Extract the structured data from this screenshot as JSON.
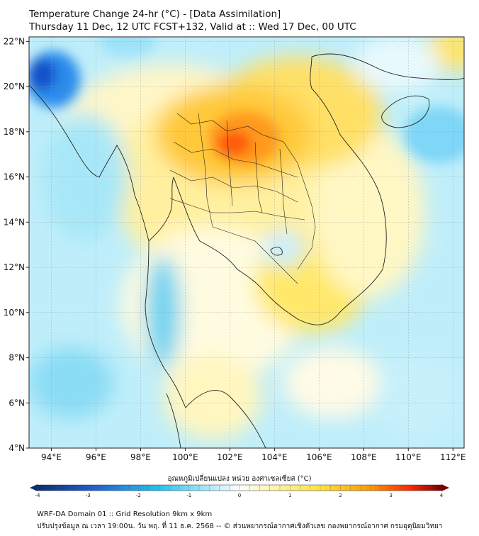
{
  "header": {
    "title_line1": "Temperature Change 24-hr (°C) - [Data Assimilation]",
    "title_line2": "Thursday 11 Dec, 12 UTC FCST+132, Valid at :: Wed 17 Dec, 00 UTC"
  },
  "map": {
    "lon_range": [
      93,
      112.5
    ],
    "lat_range": [
      4,
      22.2
    ],
    "lat_ticks": [
      {
        "value": 22,
        "label": "22°N"
      },
      {
        "value": 20,
        "label": "20°N"
      },
      {
        "value": 18,
        "label": "18°N"
      },
      {
        "value": 16,
        "label": "16°N"
      },
      {
        "value": 14,
        "label": "14°N"
      },
      {
        "value": 12,
        "label": "12°N"
      },
      {
        "value": 10,
        "label": "10°N"
      },
      {
        "value": 8,
        "label": "8°N"
      },
      {
        "value": 6,
        "label": "6°N"
      },
      {
        "value": 4,
        "label": "4°N"
      }
    ],
    "lon_ticks": [
      {
        "value": 94,
        "label": "94°E"
      },
      {
        "value": 96,
        "label": "96°E"
      },
      {
        "value": 98,
        "label": "98°E"
      },
      {
        "value": 100,
        "label": "100°E"
      },
      {
        "value": 102,
        "label": "102°E"
      },
      {
        "value": 104,
        "label": "104°E"
      },
      {
        "value": 106,
        "label": "106°E"
      },
      {
        "value": 108,
        "label": "108°E"
      },
      {
        "value": 110,
        "label": "110°E"
      },
      {
        "value": 112,
        "label": "112°E"
      }
    ]
  },
  "colorbar": {
    "title": "อุณหภูมิเปลี่ยนแปลง หน่วย องศาเซลเซียส (°C)",
    "min": -4,
    "max": 4,
    "ticks": [
      "-4",
      "-3",
      "-2",
      "-1",
      "0",
      "1",
      "2",
      "3",
      "4"
    ],
    "colors": {
      "cold_dark": "#08306b",
      "cold": "#1f5fd6",
      "cool": "#21c4f0",
      "neutral": "#ffffff",
      "warm": "#ffe23a",
      "hot": "#ff4500",
      "hot_dark": "#7a0000"
    }
  },
  "footer": {
    "line1": "WRF-DA Domain 01 :: Grid Resolution 9km x 9km",
    "line2": "ปรับปรุงข้อมูล ณ เวลา 19:00น. วัน พฤ. ที่ 11 ธ.ค. 2568 -- © ส่วนพยากรณ์อากาศเชิงตัวเลข กองพยากรณ์อากาศ กรมอุตุนิยมวิทยา"
  }
}
